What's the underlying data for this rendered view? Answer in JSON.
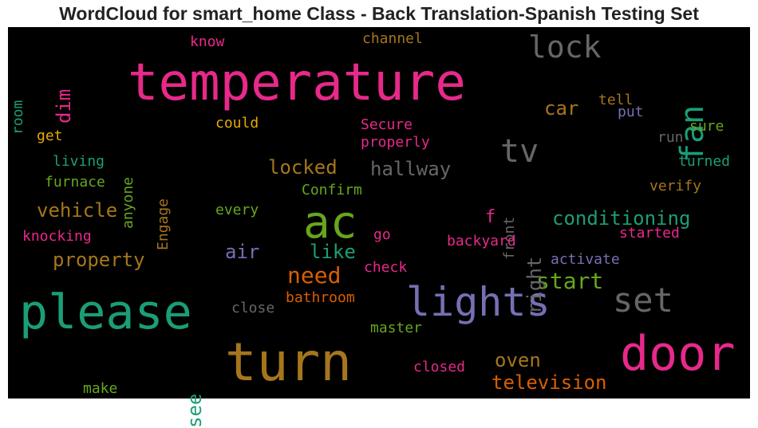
{
  "chart_data": {
    "type": "wordcloud",
    "title": "WordCloud for smart_home Class - Back Translation-Spanish Testing Set",
    "background": "#000000",
    "words": [
      {
        "text": "temperature",
        "color": "#e7298a"
      },
      {
        "text": "please",
        "color": "#1b9e77"
      },
      {
        "text": "turn",
        "color": "#a6761d"
      },
      {
        "text": "door",
        "color": "#e7298a"
      },
      {
        "text": "lights",
        "color": "#7570b3"
      },
      {
        "text": "ac",
        "color": "#66a61e"
      },
      {
        "text": "lock",
        "color": "#666666"
      },
      {
        "text": "set",
        "color": "#666666"
      },
      {
        "text": "fan",
        "color": "#1b9e77"
      },
      {
        "text": "tv",
        "color": "#666666"
      },
      {
        "text": "need",
        "color": "#d95f02"
      },
      {
        "text": "start",
        "color": "#66a61e"
      },
      {
        "text": "property",
        "color": "#a6761d"
      },
      {
        "text": "vehicle",
        "color": "#a6761d"
      },
      {
        "text": "locked",
        "color": "#a6761d"
      },
      {
        "text": "hallway",
        "color": "#666666"
      },
      {
        "text": "conditioning",
        "color": "#1b9e77"
      },
      {
        "text": "television",
        "color": "#d95f02"
      },
      {
        "text": "oven",
        "color": "#a6761d"
      },
      {
        "text": "air",
        "color": "#7570b3"
      },
      {
        "text": "like",
        "color": "#1b9e77"
      },
      {
        "text": "car",
        "color": "#a6761d"
      },
      {
        "text": "right",
        "color": "#666666"
      },
      {
        "text": "dim",
        "color": "#e7298a"
      },
      {
        "text": "see",
        "color": "#1b9e77"
      },
      {
        "text": "f",
        "color": "#e7298a"
      },
      {
        "text": "knocking",
        "color": "#e7298a"
      },
      {
        "text": "channel",
        "color": "#a6761d"
      },
      {
        "text": "know",
        "color": "#e7298a"
      },
      {
        "text": "room",
        "color": "#1b9e77"
      },
      {
        "text": "anyone",
        "color": "#66a61e"
      },
      {
        "text": "Engage",
        "color": "#a6761d"
      },
      {
        "text": "could",
        "color": "#e6ab02"
      },
      {
        "text": "Secure",
        "color": "#e7298a"
      },
      {
        "text": "properly",
        "color": "#e7298a"
      },
      {
        "text": "tell",
        "color": "#a6761d"
      },
      {
        "text": "put",
        "color": "#7570b3"
      },
      {
        "text": "sure",
        "color": "#66a61e"
      },
      {
        "text": "run",
        "color": "#666666"
      },
      {
        "text": "turned",
        "color": "#1b9e77"
      },
      {
        "text": "verify",
        "color": "#a6761d"
      },
      {
        "text": "get",
        "color": "#e6ab02"
      },
      {
        "text": "living",
        "color": "#1b9e77"
      },
      {
        "text": "furnace",
        "color": "#66a61e"
      },
      {
        "text": "Confirm",
        "color": "#66a61e"
      },
      {
        "text": "every",
        "color": "#66a61e"
      },
      {
        "text": "go",
        "color": "#e7298a"
      },
      {
        "text": "front",
        "color": "#666666"
      },
      {
        "text": "started",
        "color": "#e7298a"
      },
      {
        "text": "backyard",
        "color": "#e7298a"
      },
      {
        "text": "check",
        "color": "#e7298a"
      },
      {
        "text": "activate",
        "color": "#7570b3"
      },
      {
        "text": "bathroom",
        "color": "#d95f02"
      },
      {
        "text": "close",
        "color": "#666666"
      },
      {
        "text": "master",
        "color": "#66a61e"
      },
      {
        "text": "closed",
        "color": "#e7298a"
      },
      {
        "text": "make",
        "color": "#66a61e"
      }
    ]
  }
}
